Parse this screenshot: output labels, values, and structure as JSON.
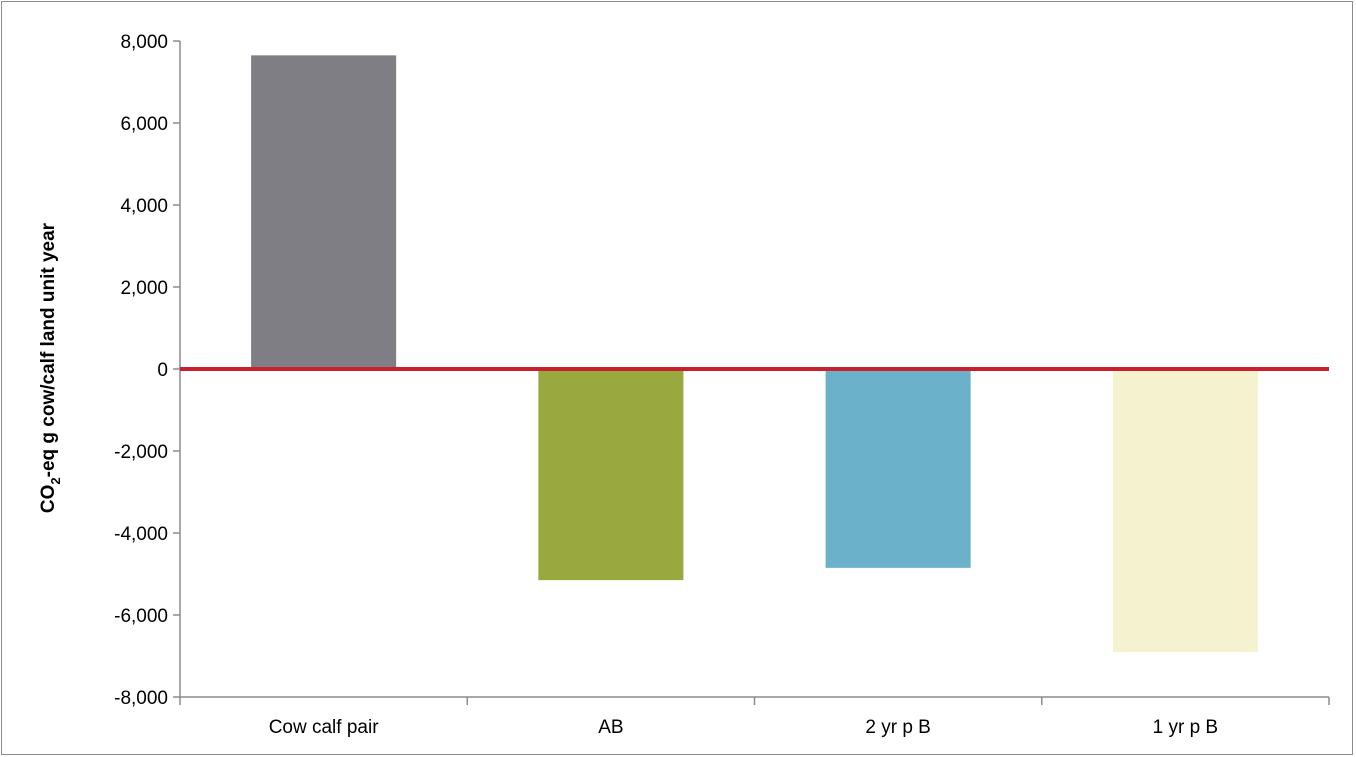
{
  "chart_data": {
    "type": "bar",
    "title": "",
    "xlabel": "",
    "ylabel_parts": [
      "CO",
      "2",
      "-eq g cow/calf land unit year"
    ],
    "categories": [
      "Cow calf pair",
      "AB",
      "2 yr p B",
      "1 yr p B"
    ],
    "values": [
      7650,
      -5150,
      -4850,
      -6900
    ],
    "colors": [
      "#7f7e84",
      "#99a83f",
      "#6ab1c9",
      "#f5f2cf"
    ],
    "ylim": [
      -8000,
      8000
    ],
    "yticks": [
      8000,
      6000,
      4000,
      2000,
      0,
      -2000,
      -4000,
      -6000,
      -8000
    ],
    "ytick_labels": [
      "8,000",
      "6,000",
      "4,000",
      "2,000",
      "0",
      "-2,000",
      "-4,000",
      "-6,000",
      "-8,000"
    ],
    "zero_line_color": "#c8202f",
    "grid": false,
    "legend": "none"
  }
}
